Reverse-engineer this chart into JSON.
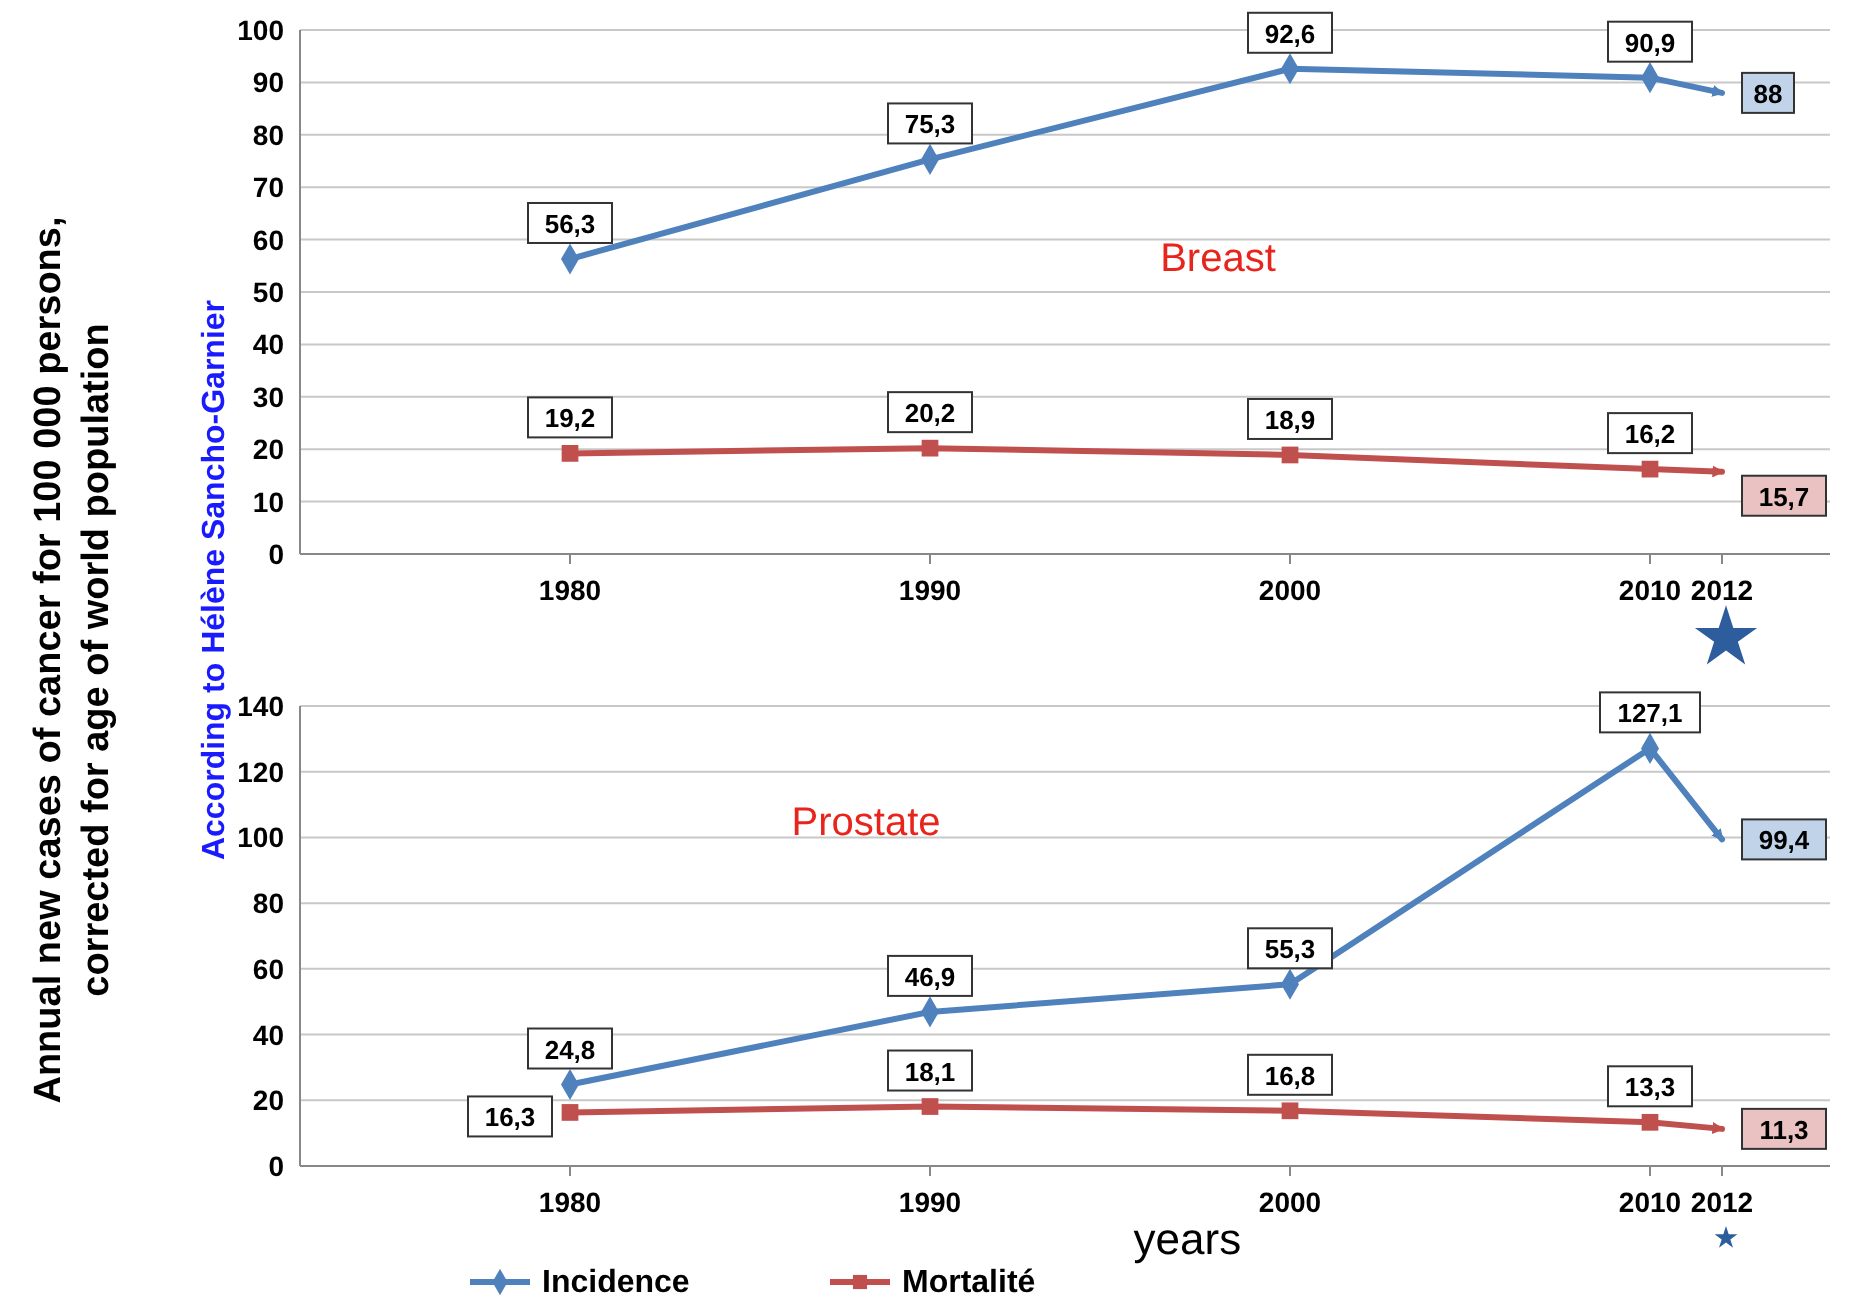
{
  "chart_data": [
    {
      "type": "line",
      "title": "Breast",
      "ylabel": "Annual new cases of cancer for 100 000 persons,\ncorrected for age of world population",
      "annotations": [
        "According to Hélène Sancho-Garnier"
      ],
      "x": [
        1980,
        1990,
        2000,
        2010,
        2012
      ],
      "xlim": [
        1972.5,
        2015
      ],
      "xticks": [
        1980,
        1990,
        2000,
        2010,
        2012
      ],
      "ylim": [
        0,
        100
      ],
      "yticks": [
        0,
        10,
        20,
        30,
        40,
        50,
        60,
        70,
        80,
        90,
        100
      ],
      "grid": "y",
      "legend": false,
      "series": [
        {
          "color": "#4f81bd",
          "marker": "diamond",
          "values": [
            56.3,
            75.3,
            92.6,
            90.9,
            88
          ],
          "value_labels": [
            "56,3",
            "75,3",
            "92,6",
            "90,9",
            "88"
          ]
        },
        {
          "color": "#c0504d",
          "marker": "square",
          "values": [
            19.2,
            20.2,
            18.9,
            16.2,
            15.7
          ],
          "value_labels": [
            "19,2",
            "20,2",
            "18,9",
            "16,2",
            "15,7"
          ]
        }
      ]
    },
    {
      "type": "line",
      "title": "Prostate",
      "xlabel": "years",
      "x": [
        1980,
        1990,
        2000,
        2010,
        2012
      ],
      "xlim": [
        1972.5,
        2015
      ],
      "xticks": [
        1980,
        1990,
        2000,
        2010,
        2012
      ],
      "ylim": [
        0,
        140
      ],
      "yticks": [
        0,
        20,
        40,
        60,
        80,
        100,
        120,
        140
      ],
      "grid": "y",
      "legend": "bottom",
      "series": [
        {
          "name": "Incidence",
          "color": "#4f81bd",
          "marker": "diamond",
          "values": [
            24.8,
            46.9,
            55.3,
            127.1,
            99.4
          ],
          "value_labels": [
            "24,8",
            "46,9",
            "55,3",
            "127,1",
            "99,4"
          ]
        },
        {
          "name": "Mortalité",
          "color": "#c0504d",
          "marker": "square",
          "values": [
            16.3,
            18.1,
            16.8,
            13.3,
            11.3
          ],
          "value_labels": [
            "16,3",
            "18,1",
            "16,8",
            "13,3",
            "11,3"
          ]
        }
      ]
    }
  ]
}
